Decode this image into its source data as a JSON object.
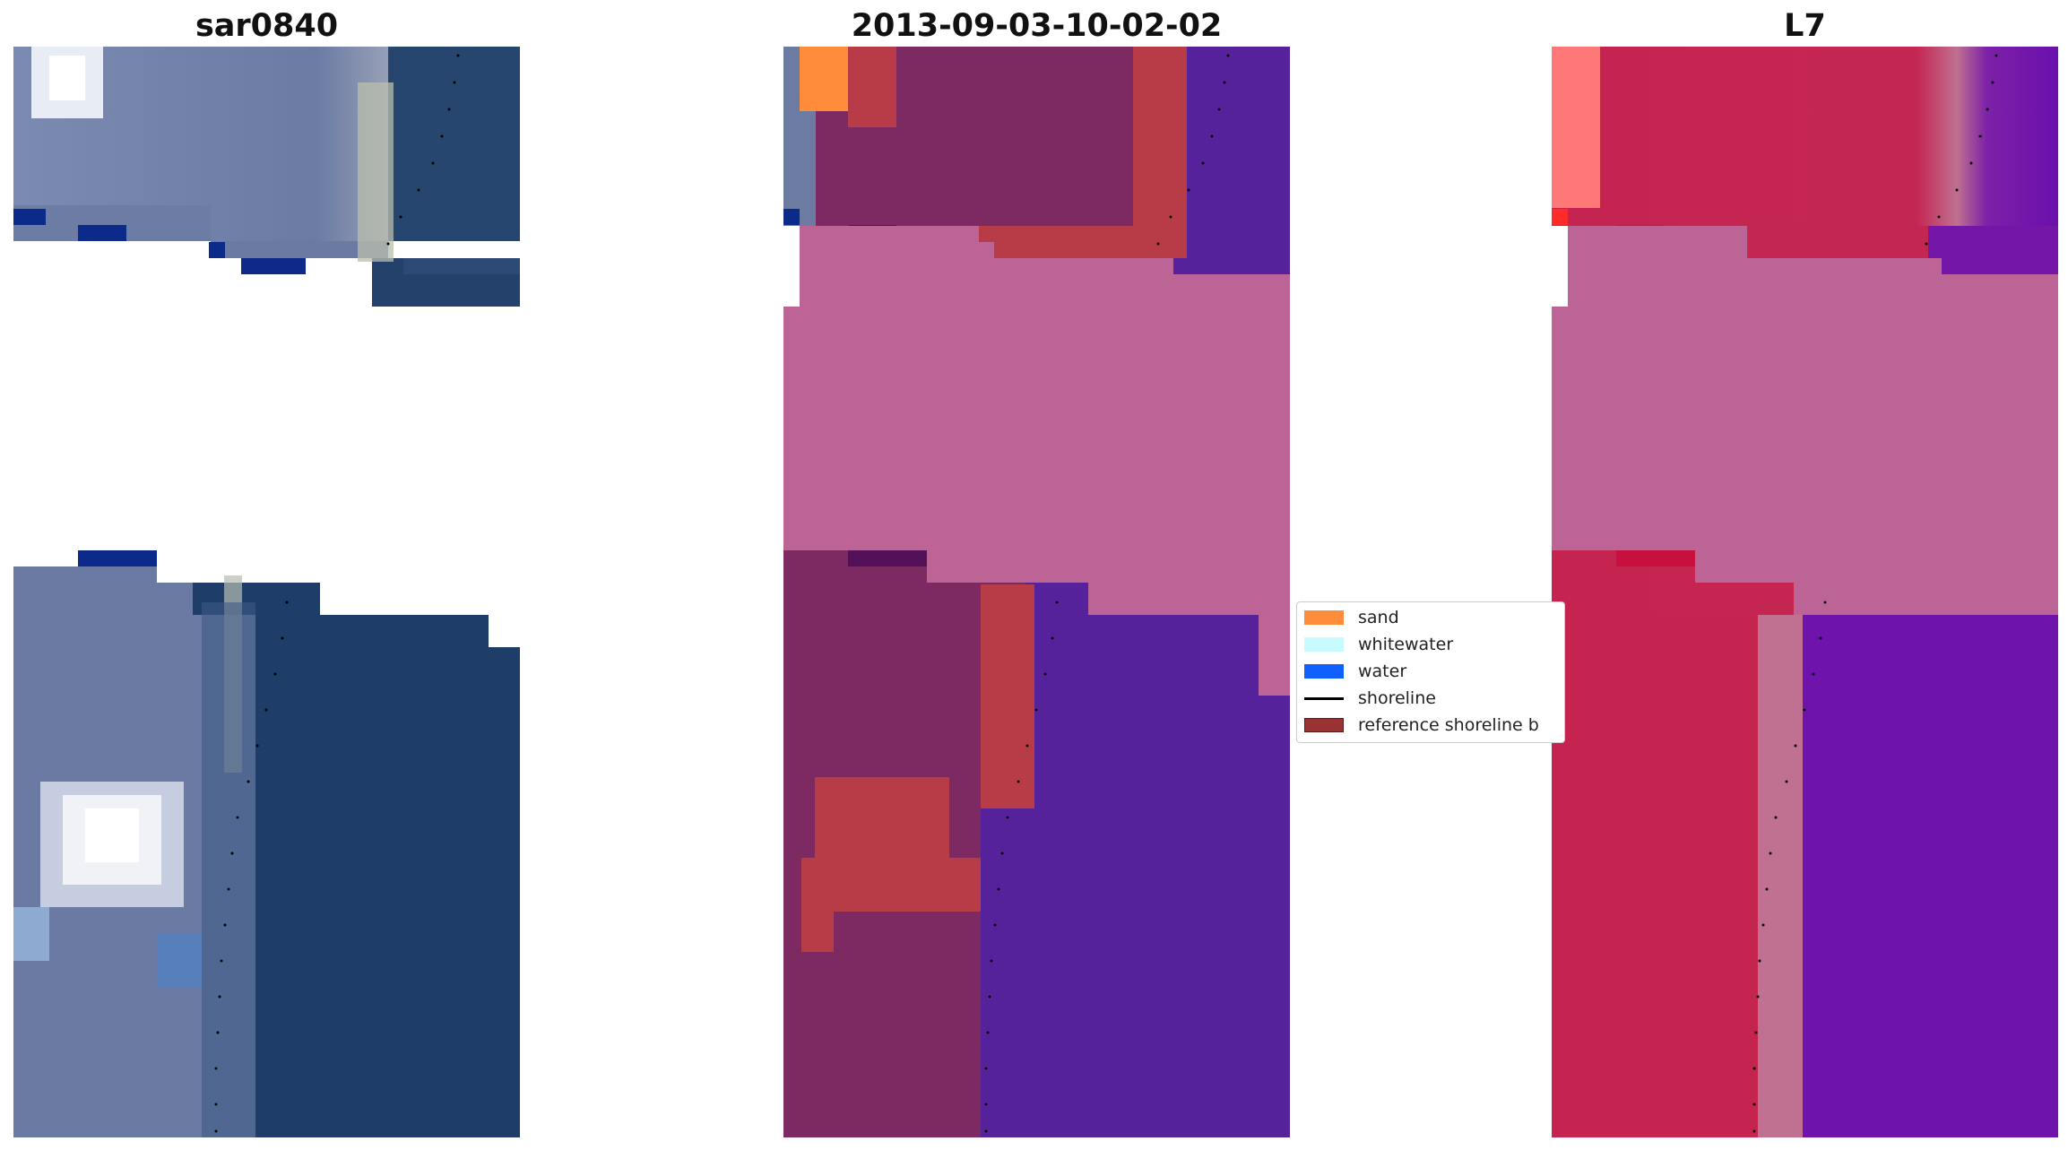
{
  "panels": [
    {
      "title": "sar0840"
    },
    {
      "title": "2013-09-03-10-02-02"
    },
    {
      "title": "L7"
    }
  ],
  "legend": {
    "items": [
      {
        "label": "sand",
        "kind": "patch",
        "color": "#ff8c3a"
      },
      {
        "label": "whitewater",
        "kind": "patch",
        "color": "#c8fbff"
      },
      {
        "label": "water",
        "kind": "patch",
        "color": "#1060ff"
      },
      {
        "label": "shoreline",
        "kind": "line",
        "color": "#000000"
      },
      {
        "label": "reference shoreline b",
        "kind": "patch",
        "color": "#993333"
      }
    ]
  },
  "colors": {
    "ocean_rgb": "#1d3a6a",
    "land_rgb": "#6d7fa8",
    "class_land": "#7d2a62",
    "class_water": "#55229b",
    "class_buffer": "#b83c47",
    "nodata_pink": "#bb6495",
    "index_land": "#c62450",
    "index_water": "#6e14ac"
  }
}
